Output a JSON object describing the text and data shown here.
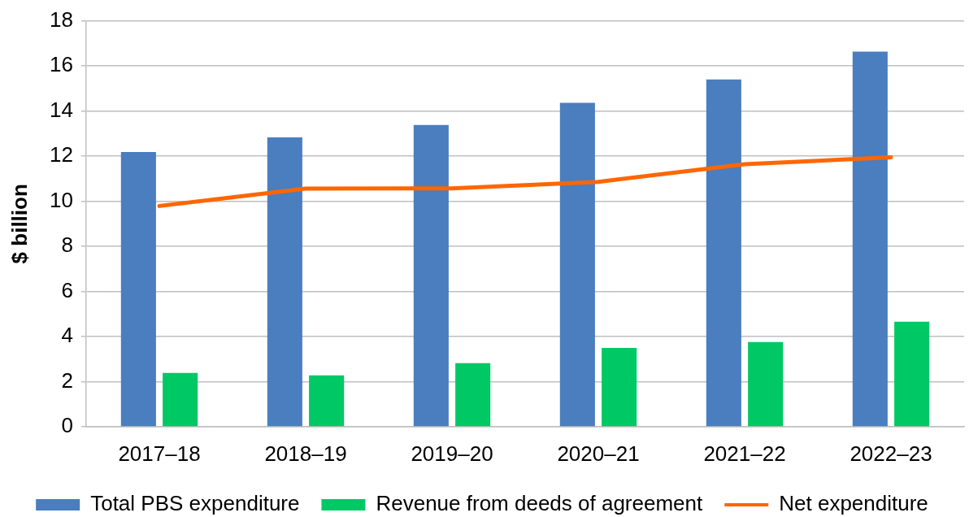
{
  "chart_data": {
    "type": "bar",
    "ylabel": "$ billion",
    "categories": [
      "2017–18",
      "2018–19",
      "2019–20",
      "2020–21",
      "2021–22",
      "2022–23"
    ],
    "series": [
      {
        "name": "Total PBS expenditure",
        "color": "#4a7ebf",
        "values": [
          12.18,
          12.83,
          13.38,
          14.36,
          15.4,
          16.63
        ]
      },
      {
        "name": "Revenue from deeds of agreement",
        "color": "#00c865",
        "values": [
          2.39,
          2.28,
          2.82,
          3.5,
          3.76,
          4.66
        ]
      },
      {
        "name": "Net expenditure",
        "type": "line",
        "color": "#ff6600",
        "values": [
          9.79,
          10.56,
          10.57,
          10.86,
          11.64,
          11.95
        ]
      }
    ],
    "ylim": [
      0,
      18
    ],
    "yticks": [
      0,
      2,
      4,
      6,
      8,
      10,
      12,
      14,
      16,
      18
    ],
    "grid": "y",
    "legend": "bottom"
  }
}
